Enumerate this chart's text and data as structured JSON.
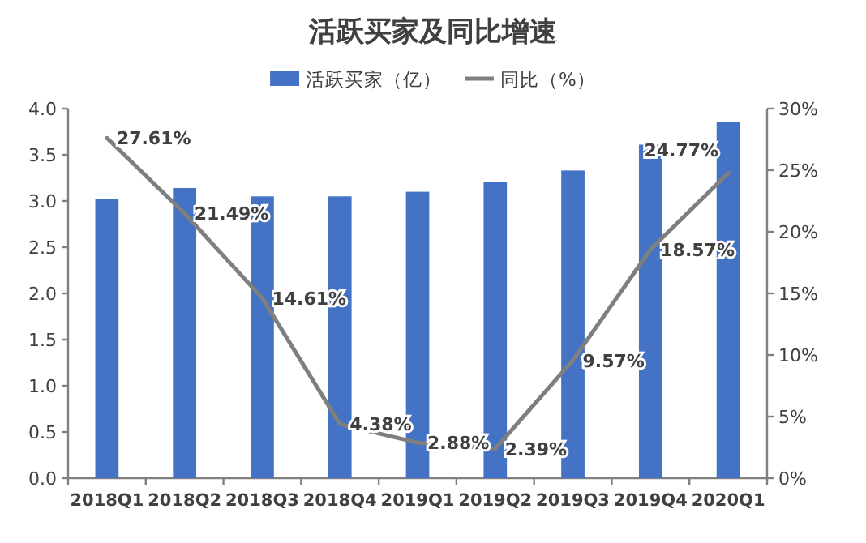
{
  "chart_data": {
    "type": "bar",
    "title": "活跃买家及同比增速",
    "legend": "top",
    "categories": [
      "2018Q1",
      "2018Q2",
      "2018Q3",
      "2018Q4",
      "2019Q1",
      "2019Q2",
      "2019Q3",
      "2019Q4",
      "2020Q1"
    ],
    "series": [
      {
        "name": "活跃买家（亿）",
        "color": "#4472c4",
        "values": [
          3.02,
          3.14,
          3.05,
          3.05,
          3.1,
          3.21,
          3.33,
          3.61,
          3.86
        ]
      },
      {
        "name": "同比（%）",
        "type": "line",
        "axis": "y2",
        "color": "#7f7f7f",
        "values": [
          27.61,
          21.49,
          14.61,
          4.38,
          2.88,
          2.39,
          9.57,
          18.57,
          24.77
        ],
        "value_labels": [
          "27.61%",
          "21.49%",
          "14.61%",
          "4.38%",
          "2.88%",
          "2.39%",
          "9.57%",
          "18.57%",
          "24.77%"
        ]
      }
    ],
    "ylim": [
      0,
      4
    ],
    "yticks": [
      {
        "value": 0,
        "label": "0.0"
      },
      {
        "value": 0.5,
        "label": "0.5"
      },
      {
        "value": 1,
        "label": "1.0"
      },
      {
        "value": 1.5,
        "label": "1.5"
      },
      {
        "value": 2,
        "label": "2.0"
      },
      {
        "value": 2.5,
        "label": "2.5"
      },
      {
        "value": 3,
        "label": "3.0"
      },
      {
        "value": 3.5,
        "label": "3.5"
      },
      {
        "value": 4,
        "label": "4.0"
      }
    ],
    "y2lim": [
      0,
      30
    ],
    "y2ticks": [
      {
        "value": 0,
        "label": "0%"
      },
      {
        "value": 5,
        "label": "5%"
      },
      {
        "value": 10,
        "label": "10%"
      },
      {
        "value": 15,
        "label": "15%"
      },
      {
        "value": 20,
        "label": "20%"
      },
      {
        "value": 25,
        "label": "25%"
      },
      {
        "value": 30,
        "label": "30%"
      }
    ]
  }
}
